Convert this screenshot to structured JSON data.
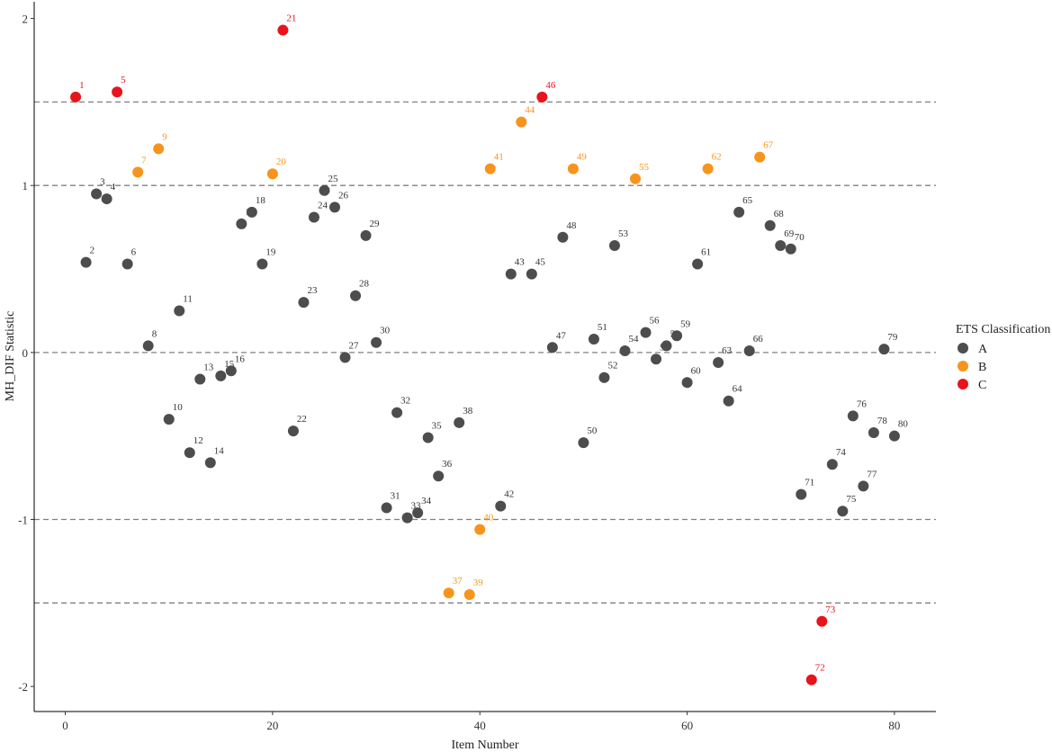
{
  "chart_data": {
    "type": "scatter",
    "xlabel": "Item Number",
    "ylabel": "MH_DIF Statistic",
    "xlim": [
      -3,
      84
    ],
    "ylim": [
      -2.15,
      2.1
    ],
    "x_ticks": [
      0,
      20,
      40,
      60,
      80
    ],
    "y_ticks": [
      -2,
      -1,
      0,
      1,
      2
    ],
    "reference_lines": [
      -1.5,
      -1,
      0,
      1,
      1.5
    ],
    "grid": false,
    "legend": {
      "title": "ETS Classification",
      "placement": "right",
      "entries": [
        "A",
        "B",
        "C"
      ]
    },
    "colors": {
      "A": "#4d4d4d",
      "B": "#f7941d",
      "C": "#e8141c"
    },
    "points": [
      {
        "x": 1,
        "y": 1.53,
        "label": "1",
        "cls": "C"
      },
      {
        "x": 2,
        "y": 0.54,
        "label": "2",
        "cls": "A"
      },
      {
        "x": 3,
        "y": 0.95,
        "label": "3",
        "cls": "A"
      },
      {
        "x": 4,
        "y": 0.92,
        "label": "4",
        "cls": "A"
      },
      {
        "x": 5,
        "y": 1.56,
        "label": "5",
        "cls": "C"
      },
      {
        "x": 6,
        "y": 0.53,
        "label": "6",
        "cls": "A"
      },
      {
        "x": 7,
        "y": 1.08,
        "label": "7",
        "cls": "B"
      },
      {
        "x": 8,
        "y": 0.04,
        "label": "8",
        "cls": "A"
      },
      {
        "x": 9,
        "y": 1.22,
        "label": "9",
        "cls": "B"
      },
      {
        "x": 10,
        "y": -0.4,
        "label": "10",
        "cls": "A"
      },
      {
        "x": 11,
        "y": 0.25,
        "label": "11",
        "cls": "A"
      },
      {
        "x": 12,
        "y": -0.6,
        "label": "12",
        "cls": "A"
      },
      {
        "x": 13,
        "y": -0.16,
        "label": "13",
        "cls": "A"
      },
      {
        "x": 14,
        "y": -0.66,
        "label": "14",
        "cls": "A"
      },
      {
        "x": 15,
        "y": -0.14,
        "label": "15",
        "cls": "A"
      },
      {
        "x": 16,
        "y": -0.11,
        "label": "16",
        "cls": "A"
      },
      {
        "x": 17,
        "y": 0.77,
        "label": "17",
        "cls": "A"
      },
      {
        "x": 18,
        "y": 0.84,
        "label": "18",
        "cls": "A"
      },
      {
        "x": 19,
        "y": 0.53,
        "label": "19",
        "cls": "A"
      },
      {
        "x": 20,
        "y": 1.07,
        "label": "20",
        "cls": "B"
      },
      {
        "x": 21,
        "y": 1.93,
        "label": "21",
        "cls": "C"
      },
      {
        "x": 22,
        "y": -0.47,
        "label": "22",
        "cls": "A"
      },
      {
        "x": 23,
        "y": 0.3,
        "label": "23",
        "cls": "A"
      },
      {
        "x": 24,
        "y": 0.81,
        "label": "24",
        "cls": "A"
      },
      {
        "x": 25,
        "y": 0.97,
        "label": "25",
        "cls": "A"
      },
      {
        "x": 26,
        "y": 0.87,
        "label": "26",
        "cls": "A"
      },
      {
        "x": 27,
        "y": -0.03,
        "label": "27",
        "cls": "A"
      },
      {
        "x": 28,
        "y": 0.34,
        "label": "28",
        "cls": "A"
      },
      {
        "x": 29,
        "y": 0.7,
        "label": "29",
        "cls": "A"
      },
      {
        "x": 30,
        "y": 0.06,
        "label": "30",
        "cls": "A"
      },
      {
        "x": 31,
        "y": -0.93,
        "label": "31",
        "cls": "A"
      },
      {
        "x": 32,
        "y": -0.36,
        "label": "32",
        "cls": "A"
      },
      {
        "x": 33,
        "y": -0.99,
        "label": "33",
        "cls": "A"
      },
      {
        "x": 34,
        "y": -0.96,
        "label": "34",
        "cls": "A"
      },
      {
        "x": 35,
        "y": -0.51,
        "label": "35",
        "cls": "A"
      },
      {
        "x": 36,
        "y": -0.74,
        "label": "36",
        "cls": "A"
      },
      {
        "x": 37,
        "y": -1.44,
        "label": "37",
        "cls": "B"
      },
      {
        "x": 38,
        "y": -0.42,
        "label": "38",
        "cls": "A"
      },
      {
        "x": 39,
        "y": -1.45,
        "label": "39",
        "cls": "B"
      },
      {
        "x": 40,
        "y": -1.06,
        "label": "40",
        "cls": "B"
      },
      {
        "x": 41,
        "y": 1.1,
        "label": "41",
        "cls": "B"
      },
      {
        "x": 42,
        "y": -0.92,
        "label": "42",
        "cls": "A"
      },
      {
        "x": 43,
        "y": 0.47,
        "label": "43",
        "cls": "A"
      },
      {
        "x": 44,
        "y": 1.38,
        "label": "44",
        "cls": "B"
      },
      {
        "x": 45,
        "y": 0.47,
        "label": "45",
        "cls": "A"
      },
      {
        "x": 46,
        "y": 1.53,
        "label": "46",
        "cls": "C"
      },
      {
        "x": 47,
        "y": 0.03,
        "label": "47",
        "cls": "A"
      },
      {
        "x": 48,
        "y": 0.69,
        "label": "48",
        "cls": "A"
      },
      {
        "x": 49,
        "y": 1.1,
        "label": "49",
        "cls": "B"
      },
      {
        "x": 50,
        "y": -0.54,
        "label": "50",
        "cls": "A"
      },
      {
        "x": 51,
        "y": 0.08,
        "label": "51",
        "cls": "A"
      },
      {
        "x": 52,
        "y": -0.15,
        "label": "52",
        "cls": "A"
      },
      {
        "x": 53,
        "y": 0.64,
        "label": "53",
        "cls": "A"
      },
      {
        "x": 54,
        "y": 0.01,
        "label": "54",
        "cls": "A"
      },
      {
        "x": 55,
        "y": 1.04,
        "label": "55",
        "cls": "B"
      },
      {
        "x": 56,
        "y": 0.12,
        "label": "56",
        "cls": "A"
      },
      {
        "x": 57,
        "y": -0.04,
        "label": "57",
        "cls": "A"
      },
      {
        "x": 58,
        "y": 0.04,
        "label": "58",
        "cls": "A"
      },
      {
        "x": 59,
        "y": 0.1,
        "label": "59",
        "cls": "A"
      },
      {
        "x": 60,
        "y": -0.18,
        "label": "60",
        "cls": "A"
      },
      {
        "x": 61,
        "y": 0.53,
        "label": "61",
        "cls": "A"
      },
      {
        "x": 62,
        "y": 1.1,
        "label": "62",
        "cls": "B"
      },
      {
        "x": 63,
        "y": -0.06,
        "label": "63",
        "cls": "A"
      },
      {
        "x": 64,
        "y": -0.29,
        "label": "64",
        "cls": "A"
      },
      {
        "x": 65,
        "y": 0.84,
        "label": "65",
        "cls": "A"
      },
      {
        "x": 66,
        "y": 0.01,
        "label": "66",
        "cls": "A"
      },
      {
        "x": 67,
        "y": 1.17,
        "label": "67",
        "cls": "B"
      },
      {
        "x": 68,
        "y": 0.76,
        "label": "68",
        "cls": "A"
      },
      {
        "x": 69,
        "y": 0.64,
        "label": "69",
        "cls": "A"
      },
      {
        "x": 70,
        "y": 0.62,
        "label": "70",
        "cls": "A"
      },
      {
        "x": 71,
        "y": -0.85,
        "label": "71",
        "cls": "A"
      },
      {
        "x": 72,
        "y": -1.96,
        "label": "72",
        "cls": "C"
      },
      {
        "x": 73,
        "y": -1.61,
        "label": "73",
        "cls": "C"
      },
      {
        "x": 74,
        "y": -0.67,
        "label": "74",
        "cls": "A"
      },
      {
        "x": 75,
        "y": -0.95,
        "label": "75",
        "cls": "A"
      },
      {
        "x": 76,
        "y": -0.38,
        "label": "76",
        "cls": "A"
      },
      {
        "x": 77,
        "y": -0.8,
        "label": "77",
        "cls": "A"
      },
      {
        "x": 78,
        "y": -0.48,
        "label": "78",
        "cls": "A"
      },
      {
        "x": 79,
        "y": 0.02,
        "label": "79",
        "cls": "A"
      },
      {
        "x": 80,
        "y": -0.5,
        "label": "80",
        "cls": "A"
      }
    ]
  }
}
